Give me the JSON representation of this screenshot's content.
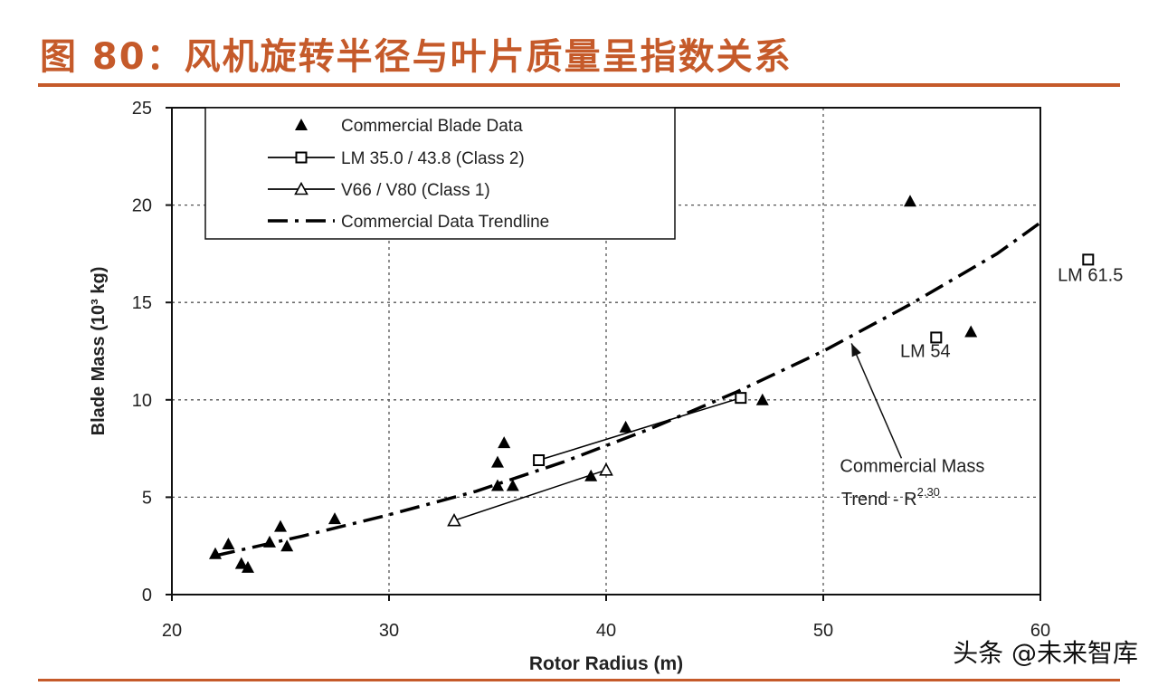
{
  "figure": {
    "title": "图 80：风机旋转半径与叶片质量呈指数关系",
    "watermark": "头条 @未来智库"
  },
  "colors": {
    "title": "#c55a2a",
    "series": "#000000",
    "grid": "#555555"
  },
  "chart_data": {
    "type": "scatter",
    "title": "",
    "xlabel": "Rotor Radius (m)",
    "ylabel": "Blade Mass (10³ kg)",
    "xlim": [
      20,
      60
    ],
    "ylim": [
      0,
      25
    ],
    "xticks": [
      20,
      30,
      40,
      50,
      60
    ],
    "yticks": [
      0,
      5,
      10,
      15,
      20,
      25
    ],
    "grid": true,
    "legend_position": "top-left",
    "series": [
      {
        "name": "Commercial Blade Data",
        "marker": "filled-triangle",
        "line": false,
        "points": [
          [
            22.0,
            2.1
          ],
          [
            22.6,
            2.6
          ],
          [
            23.2,
            1.6
          ],
          [
            23.5,
            1.4
          ],
          [
            24.5,
            2.7
          ],
          [
            25.0,
            3.5
          ],
          [
            25.3,
            2.5
          ],
          [
            27.5,
            3.9
          ],
          [
            35.0,
            5.6
          ],
          [
            35.0,
            6.8
          ],
          [
            35.3,
            7.8
          ],
          [
            35.7,
            5.6
          ],
          [
            39.3,
            6.1
          ],
          [
            40.9,
            8.6
          ],
          [
            47.2,
            10.0
          ],
          [
            54.0,
            20.2
          ],
          [
            56.8,
            13.5
          ]
        ]
      },
      {
        "name": "LM 35.0 / 43.8 (Class 2)",
        "marker": "open-square",
        "line": true,
        "points": [
          [
            36.9,
            6.9
          ],
          [
            46.2,
            10.1
          ]
        ]
      },
      {
        "name": "V66 / V80 (Class 1)",
        "marker": "open-triangle",
        "line": true,
        "points": [
          [
            33.0,
            3.8
          ],
          [
            40.0,
            6.4
          ]
        ]
      },
      {
        "name": "Commercial Data Trendline",
        "marker": "none",
        "line": "dash-dot",
        "points": [
          [
            22.0,
            2.0
          ],
          [
            26.0,
            3.0
          ],
          [
            30.0,
            4.1
          ],
          [
            34.0,
            5.3
          ],
          [
            38.0,
            6.8
          ],
          [
            42.0,
            8.5
          ],
          [
            46.0,
            10.4
          ],
          [
            50.0,
            12.5
          ],
          [
            54.0,
            14.9
          ],
          [
            58.0,
            17.5
          ],
          [
            60.0,
            19.1
          ]
        ]
      },
      {
        "name": "",
        "marker": "open-square",
        "line": false,
        "points": [
          [
            55.2,
            13.2
          ],
          [
            62.2,
            17.2
          ]
        ]
      }
    ],
    "annotations": [
      {
        "text": "LM 61.5",
        "x": 62.3,
        "y": 16.1
      },
      {
        "text": "LM 54",
        "x": 54.7,
        "y": 12.2
      },
      {
        "text": "Commercial Mass",
        "x": 54.1,
        "y": 6.3
      },
      {
        "text": "Trend -  R",
        "sup": "2.30",
        "x": 53.1,
        "y": 4.6
      }
    ],
    "arrow": {
      "from": [
        53.6,
        7.0
      ],
      "to": [
        51.3,
        12.9
      ]
    }
  }
}
